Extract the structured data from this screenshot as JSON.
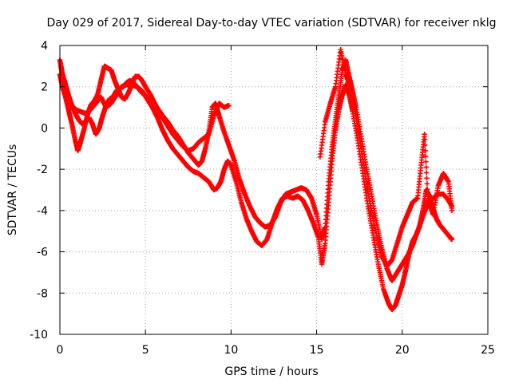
{
  "chart_data": {
    "type": "scatter",
    "title": "Day 029 of 2017, Sidereal Day-to-day VTEC variation (SDTVAR) for receiver nklg",
    "xlabel": "GPS time / hours",
    "ylabel": "SDTVAR / TECUs",
    "xlim": [
      0,
      25
    ],
    "ylim": [
      -10,
      4
    ],
    "xticks": [
      "0",
      "5",
      "10",
      "15",
      "20",
      "25"
    ],
    "yticks": [
      "4",
      "2",
      "0",
      "-2",
      "-4",
      "-6",
      "-8",
      "-10"
    ],
    "grid": true,
    "marker": "+",
    "marker_color": "#ff0000",
    "series": [
      {
        "values": [
          [
            0.0,
            2.6
          ],
          [
            0.15,
            2.0
          ],
          [
            0.3,
            1.6
          ],
          [
            0.5,
            0.9
          ],
          [
            0.7,
            0.2
          ],
          [
            0.9,
            -0.6
          ],
          [
            1.05,
            -1.1
          ],
          [
            1.2,
            -0.7
          ],
          [
            1.4,
            -0.1
          ],
          [
            1.6,
            0.6
          ],
          [
            1.8,
            1.1
          ],
          [
            2.0,
            1.3
          ],
          [
            2.2,
            1.6
          ],
          [
            2.4,
            2.3
          ],
          [
            2.6,
            3.0
          ],
          [
            2.8,
            2.9
          ],
          [
            3.0,
            2.8
          ],
          [
            3.2,
            2.3
          ],
          [
            3.4,
            1.9
          ],
          [
            3.6,
            1.5
          ],
          [
            3.8,
            1.4
          ],
          [
            4.0,
            1.7
          ],
          [
            4.2,
            2.1
          ],
          [
            4.4,
            2.5
          ],
          [
            4.6,
            2.5
          ],
          [
            4.8,
            2.3
          ],
          [
            5.0,
            2.0
          ],
          [
            5.3,
            1.6
          ],
          [
            5.6,
            1.1
          ],
          [
            6.0,
            0.6
          ],
          [
            6.3,
            0.3
          ],
          [
            6.6,
            -0.1
          ],
          [
            6.9,
            -0.4
          ],
          [
            7.2,
            -0.8
          ],
          [
            7.5,
            -1.2
          ],
          [
            7.8,
            -1.5
          ],
          [
            8.1,
            -1.8
          ],
          [
            8.3,
            -1.6
          ],
          [
            8.5,
            -1.0
          ],
          [
            8.7,
            -0.2
          ],
          [
            8.9,
            1.0
          ],
          [
            9.1,
            1.2
          ],
          [
            9.3,
            0.6
          ],
          [
            9.6,
            -0.2
          ],
          [
            9.9,
            -0.9
          ],
          [
            10.2,
            -1.6
          ],
          [
            10.5,
            -2.5
          ],
          [
            10.8,
            -3.2
          ],
          [
            11.1,
            -3.8
          ],
          [
            11.4,
            -4.3
          ],
          [
            11.7,
            -4.6
          ],
          [
            12.0,
            -4.8
          ],
          [
            12.3,
            -4.7
          ],
          [
            12.6,
            -4.3
          ],
          [
            12.9,
            -3.6
          ],
          [
            13.2,
            -3.2
          ],
          [
            13.5,
            -3.1
          ],
          [
            13.8,
            -3.0
          ],
          [
            14.1,
            -2.9
          ],
          [
            14.4,
            -3.0
          ],
          [
            14.7,
            -3.4
          ],
          [
            15.0,
            -4.2
          ],
          [
            15.3,
            -5.4
          ],
          [
            15.5,
            -4.8
          ],
          [
            15.7,
            -2.6
          ],
          [
            15.9,
            -0.9
          ],
          [
            16.1,
            0.4
          ],
          [
            16.3,
            1.6
          ],
          [
            16.5,
            2.8
          ],
          [
            16.7,
            3.3
          ],
          [
            16.9,
            2.5
          ],
          [
            17.1,
            1.8
          ],
          [
            17.3,
            1.0
          ],
          [
            17.6,
            -0.4
          ],
          [
            17.9,
            -1.9
          ],
          [
            18.2,
            -3.2
          ],
          [
            18.5,
            -4.6
          ],
          [
            18.8,
            -5.8
          ],
          [
            19.1,
            -6.8
          ],
          [
            19.4,
            -7.4
          ],
          [
            19.7,
            -7.0
          ],
          [
            20.0,
            -6.6
          ],
          [
            20.3,
            -6.2
          ],
          [
            20.6,
            -5.7
          ],
          [
            20.9,
            -5.0
          ],
          [
            21.2,
            -4.3
          ],
          [
            21.5,
            -3.6
          ],
          [
            21.8,
            -3.4
          ],
          [
            22.1,
            -3.2
          ],
          [
            22.4,
            -3.2
          ],
          [
            22.7,
            -3.5
          ],
          [
            22.9,
            -3.8
          ]
        ]
      },
      {
        "values": [
          [
            0.0,
            3.3
          ],
          [
            0.15,
            2.6
          ],
          [
            0.3,
            2.2
          ],
          [
            0.5,
            1.6
          ],
          [
            0.7,
            1.1
          ],
          [
            0.9,
            0.7
          ],
          [
            1.1,
            0.4
          ],
          [
            1.3,
            0.2
          ],
          [
            1.5,
            0.3
          ],
          [
            1.7,
            0.5
          ],
          [
            1.9,
            0.2
          ],
          [
            2.1,
            -0.3
          ],
          [
            2.3,
            0.0
          ],
          [
            2.5,
            0.6
          ],
          [
            2.7,
            1.1
          ],
          [
            2.9,
            1.4
          ],
          [
            3.1,
            1.5
          ],
          [
            3.3,
            1.8
          ],
          [
            3.5,
            1.9
          ],
          [
            3.7,
            2.0
          ],
          [
            3.9,
            2.2
          ],
          [
            4.1,
            2.3
          ],
          [
            4.3,
            2.2
          ],
          [
            4.5,
            2.0
          ],
          [
            4.8,
            1.8
          ],
          [
            5.1,
            1.4
          ],
          [
            5.4,
            1.0
          ],
          [
            5.7,
            0.5
          ],
          [
            6.0,
            -0.1
          ],
          [
            6.3,
            -0.6
          ],
          [
            6.6,
            -1.0
          ],
          [
            6.9,
            -1.3
          ],
          [
            7.2,
            -1.6
          ],
          [
            7.5,
            -1.9
          ],
          [
            7.8,
            -2.1
          ],
          [
            8.1,
            -2.2
          ],
          [
            8.4,
            -2.4
          ],
          [
            8.7,
            -2.6
          ],
          [
            9.0,
            -3.0
          ],
          [
            9.2,
            -2.9
          ],
          [
            9.4,
            -2.6
          ],
          [
            9.6,
            -2.0
          ],
          [
            9.8,
            -1.6
          ],
          [
            10.0,
            -1.8
          ],
          [
            10.3,
            -2.6
          ],
          [
            10.6,
            -3.6
          ],
          [
            10.9,
            -4.4
          ],
          [
            11.2,
            -5.0
          ],
          [
            11.5,
            -5.5
          ],
          [
            11.8,
            -5.7
          ],
          [
            12.1,
            -5.4
          ],
          [
            12.4,
            -4.6
          ],
          [
            12.7,
            -3.9
          ],
          [
            13.0,
            -3.4
          ],
          [
            13.3,
            -3.3
          ],
          [
            13.6,
            -3.4
          ],
          [
            13.9,
            -3.3
          ],
          [
            14.2,
            -3.5
          ],
          [
            14.5,
            -4.0
          ],
          [
            14.8,
            -4.6
          ],
          [
            15.1,
            -5.3
          ],
          [
            15.3,
            -6.6
          ],
          [
            15.5,
            -5.6
          ],
          [
            15.7,
            -3.6
          ],
          [
            15.9,
            -1.6
          ],
          [
            16.1,
            -0.1
          ],
          [
            16.3,
            0.9
          ],
          [
            16.5,
            1.6
          ],
          [
            16.7,
            2.1
          ],
          [
            16.9,
            1.6
          ],
          [
            17.1,
            0.8
          ],
          [
            17.4,
            -0.6
          ],
          [
            17.7,
            -2.2
          ],
          [
            18.0,
            -3.8
          ],
          [
            18.3,
            -5.2
          ],
          [
            18.6,
            -6.6
          ],
          [
            18.9,
            -7.8
          ],
          [
            19.2,
            -8.5
          ],
          [
            19.4,
            -8.8
          ],
          [
            19.6,
            -8.6
          ],
          [
            19.8,
            -8.1
          ],
          [
            20.0,
            -7.6
          ],
          [
            20.2,
            -6.9
          ],
          [
            20.4,
            -6.1
          ],
          [
            20.6,
            -5.5
          ],
          [
            20.8,
            -5.2
          ],
          [
            21.0,
            -4.8
          ],
          [
            21.2,
            -4.0
          ],
          [
            21.4,
            -3.0
          ],
          [
            21.6,
            -3.3
          ],
          [
            21.8,
            -3.9
          ],
          [
            22.0,
            -4.4
          ],
          [
            22.2,
            -4.7
          ],
          [
            22.5,
            -5.0
          ],
          [
            22.8,
            -5.3
          ],
          [
            22.9,
            -5.4
          ]
        ]
      },
      {
        "values": [
          [
            0.05,
            3.0
          ],
          [
            0.3,
            2.0
          ],
          [
            0.6,
            1.2
          ],
          [
            0.9,
            0.9
          ],
          [
            1.2,
            0.8
          ],
          [
            1.5,
            0.7
          ],
          [
            1.8,
            0.9
          ],
          [
            2.1,
            1.2
          ],
          [
            2.4,
            1.5
          ],
          [
            2.7,
            1.0
          ],
          [
            3.0,
            1.2
          ],
          [
            3.3,
            1.6
          ],
          [
            3.6,
            2.0
          ],
          [
            3.9,
            2.1
          ],
          [
            4.2,
            2.1
          ],
          [
            4.5,
            2.0
          ],
          [
            4.8,
            1.7
          ],
          [
            5.1,
            1.5
          ],
          [
            5.4,
            1.2
          ],
          [
            5.7,
            0.9
          ],
          [
            6.0,
            0.5
          ],
          [
            6.3,
            0.1
          ],
          [
            6.6,
            -0.3
          ],
          [
            6.9,
            -0.6
          ],
          [
            7.2,
            -0.9
          ],
          [
            7.5,
            -1.1
          ],
          [
            7.8,
            -1.0
          ],
          [
            8.1,
            -0.7
          ],
          [
            8.4,
            -0.5
          ],
          [
            8.7,
            -0.3
          ],
          [
            9.0,
            0.6
          ],
          [
            9.3,
            1.2
          ],
          [
            9.6,
            1.0
          ],
          [
            9.9,
            1.1
          ],
          [
            15.2,
            -1.4
          ],
          [
            15.5,
            0.3
          ],
          [
            15.8,
            1.2
          ],
          [
            16.1,
            2.0
          ],
          [
            16.4,
            3.8
          ],
          [
            16.7,
            2.6
          ],
          [
            17.0,
            1.9
          ],
          [
            17.3,
            0.6
          ],
          [
            17.6,
            -1.0
          ],
          [
            17.9,
            -2.6
          ],
          [
            18.2,
            -4.0
          ],
          [
            18.5,
            -5.2
          ],
          [
            18.8,
            -6.2
          ],
          [
            19.1,
            -6.7
          ],
          [
            19.4,
            -6.4
          ],
          [
            19.7,
            -5.6
          ],
          [
            20.0,
            -4.8
          ],
          [
            20.3,
            -4.2
          ],
          [
            20.6,
            -3.6
          ],
          [
            20.9,
            -3.4
          ],
          [
            21.1,
            -1.8
          ],
          [
            21.3,
            -0.3
          ],
          [
            21.5,
            -3.5
          ],
          [
            21.8,
            -4.2
          ],
          [
            22.1,
            -2.8
          ],
          [
            22.4,
            -2.2
          ],
          [
            22.7,
            -2.6
          ],
          [
            22.9,
            -4.0
          ]
        ]
      }
    ]
  }
}
